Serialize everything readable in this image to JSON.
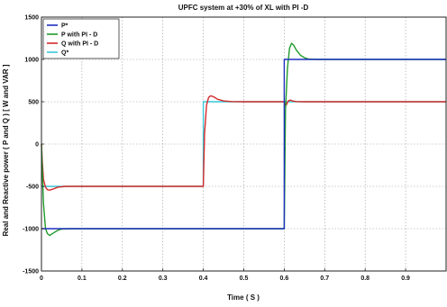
{
  "chart_data": {
    "type": "line",
    "title": "UPFC system at +30% of XL with PI -D",
    "xlabel": "Time ( S )",
    "ylabel": "Real and Reactive power ( P and Q ) [ W and VAR ]",
    "xlim": [
      0,
      1
    ],
    "ylim": [
      -1500,
      1500
    ],
    "x_ticks": [
      "0",
      "0.1",
      "0.2",
      "0.3",
      "0.4",
      "0.5",
      "0.6",
      "0.7",
      "0.8",
      "0.9"
    ],
    "y_ticks": [
      "-1500",
      "-1000",
      "-500",
      "0",
      "500",
      "1000",
      "1500"
    ],
    "grid": true,
    "legend_position": "top-left",
    "series": [
      {
        "name": "P*",
        "color": "#1f2fbf",
        "x": [
          0,
          0.2,
          0.4,
          0.6,
          0.6,
          0.8,
          1.0
        ],
        "y": [
          -1000,
          -1000,
          -1000,
          -1000,
          1000,
          1000,
          1000
        ]
      },
      {
        "name": "P with PI - D",
        "color": "#1f9a2a",
        "x": [
          0,
          0.002,
          0.005,
          0.01,
          0.015,
          0.02,
          0.03,
          0.04,
          0.05,
          0.07,
          0.1,
          0.2,
          0.3,
          0.4,
          0.5,
          0.59,
          0.6,
          0.603,
          0.608,
          0.613,
          0.618,
          0.623,
          0.63,
          0.64,
          0.65,
          0.66,
          0.68,
          0.7,
          0.8,
          0.9,
          1.0
        ],
        "y": [
          0,
          -300,
          -700,
          -1000,
          -1060,
          -1080,
          -1050,
          -1020,
          -1005,
          -1000,
          -1000,
          -1000,
          -1000,
          -1000,
          -1000,
          -1000,
          -1000,
          400,
          900,
          1130,
          1190,
          1170,
          1110,
          1050,
          1020,
          1005,
          1000,
          1000,
          1000,
          1000,
          1000
        ]
      },
      {
        "name": "Q with PI - D",
        "color": "#d42a2a",
        "x": [
          0,
          0.002,
          0.005,
          0.01,
          0.015,
          0.02,
          0.03,
          0.04,
          0.06,
          0.1,
          0.2,
          0.3,
          0.4,
          0.403,
          0.408,
          0.413,
          0.418,
          0.425,
          0.435,
          0.45,
          0.47,
          0.5,
          0.59,
          0.6,
          0.603,
          0.606,
          0.61,
          0.615,
          0.62,
          0.63,
          0.65,
          0.7,
          0.8,
          0.9,
          1.0
        ],
        "y": [
          0,
          -200,
          -420,
          -510,
          -540,
          -545,
          -530,
          -510,
          -500,
          -500,
          -500,
          -500,
          -500,
          120,
          460,
          550,
          570,
          560,
          530,
          510,
          502,
          500,
          500,
          500,
          450,
          470,
          510,
          520,
          510,
          502,
          500,
          500,
          500,
          500,
          500
        ]
      },
      {
        "name": "Q*",
        "color": "#39c6d8",
        "x": [
          0,
          0.2,
          0.4,
          0.4,
          0.6,
          0.8,
          1.0
        ],
        "y": [
          -500,
          -500,
          -500,
          500,
          500,
          500,
          500
        ]
      }
    ]
  }
}
